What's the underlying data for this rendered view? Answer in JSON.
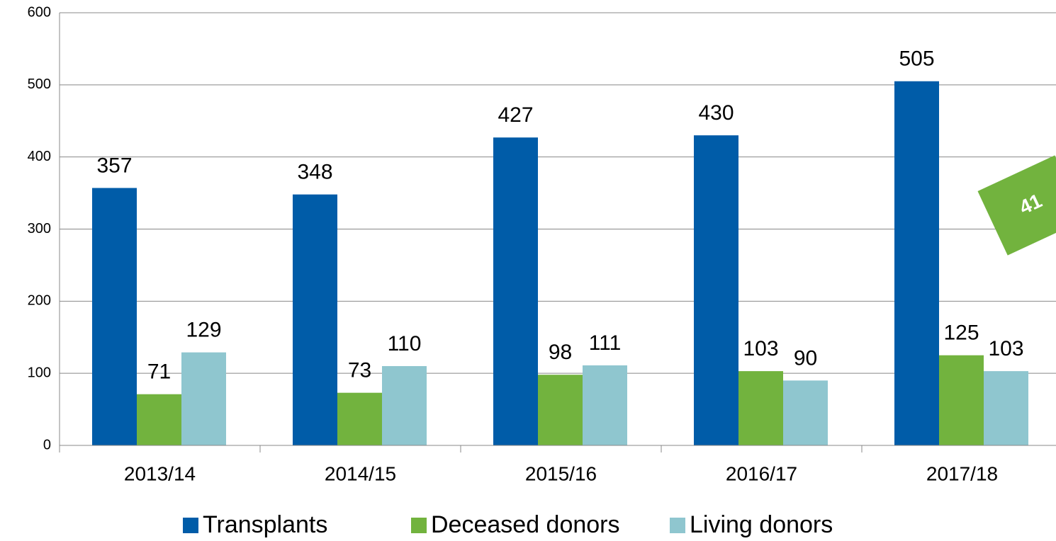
{
  "chart_data": {
    "type": "bar",
    "categories": [
      "2013/14",
      "2014/15",
      "2015/16",
      "2016/17",
      "2017/18"
    ],
    "series": [
      {
        "name": "Transplants",
        "color": "#005ca8",
        "values": [
          357,
          348,
          427,
          430,
          505
        ]
      },
      {
        "name": "Deceased donors",
        "color": "#72b33e",
        "values": [
          71,
          73,
          98,
          103,
          125
        ]
      },
      {
        "name": "Living donors",
        "color": "#8fc6cf",
        "values": [
          129,
          110,
          111,
          90,
          103
        ]
      }
    ],
    "ylim": [
      0,
      600
    ],
    "yticks": [
      0,
      100,
      200,
      300,
      400,
      500,
      600
    ],
    "grid": true,
    "legend": "bottom",
    "annotation": "41",
    "annotation_color": "#72b33e"
  }
}
